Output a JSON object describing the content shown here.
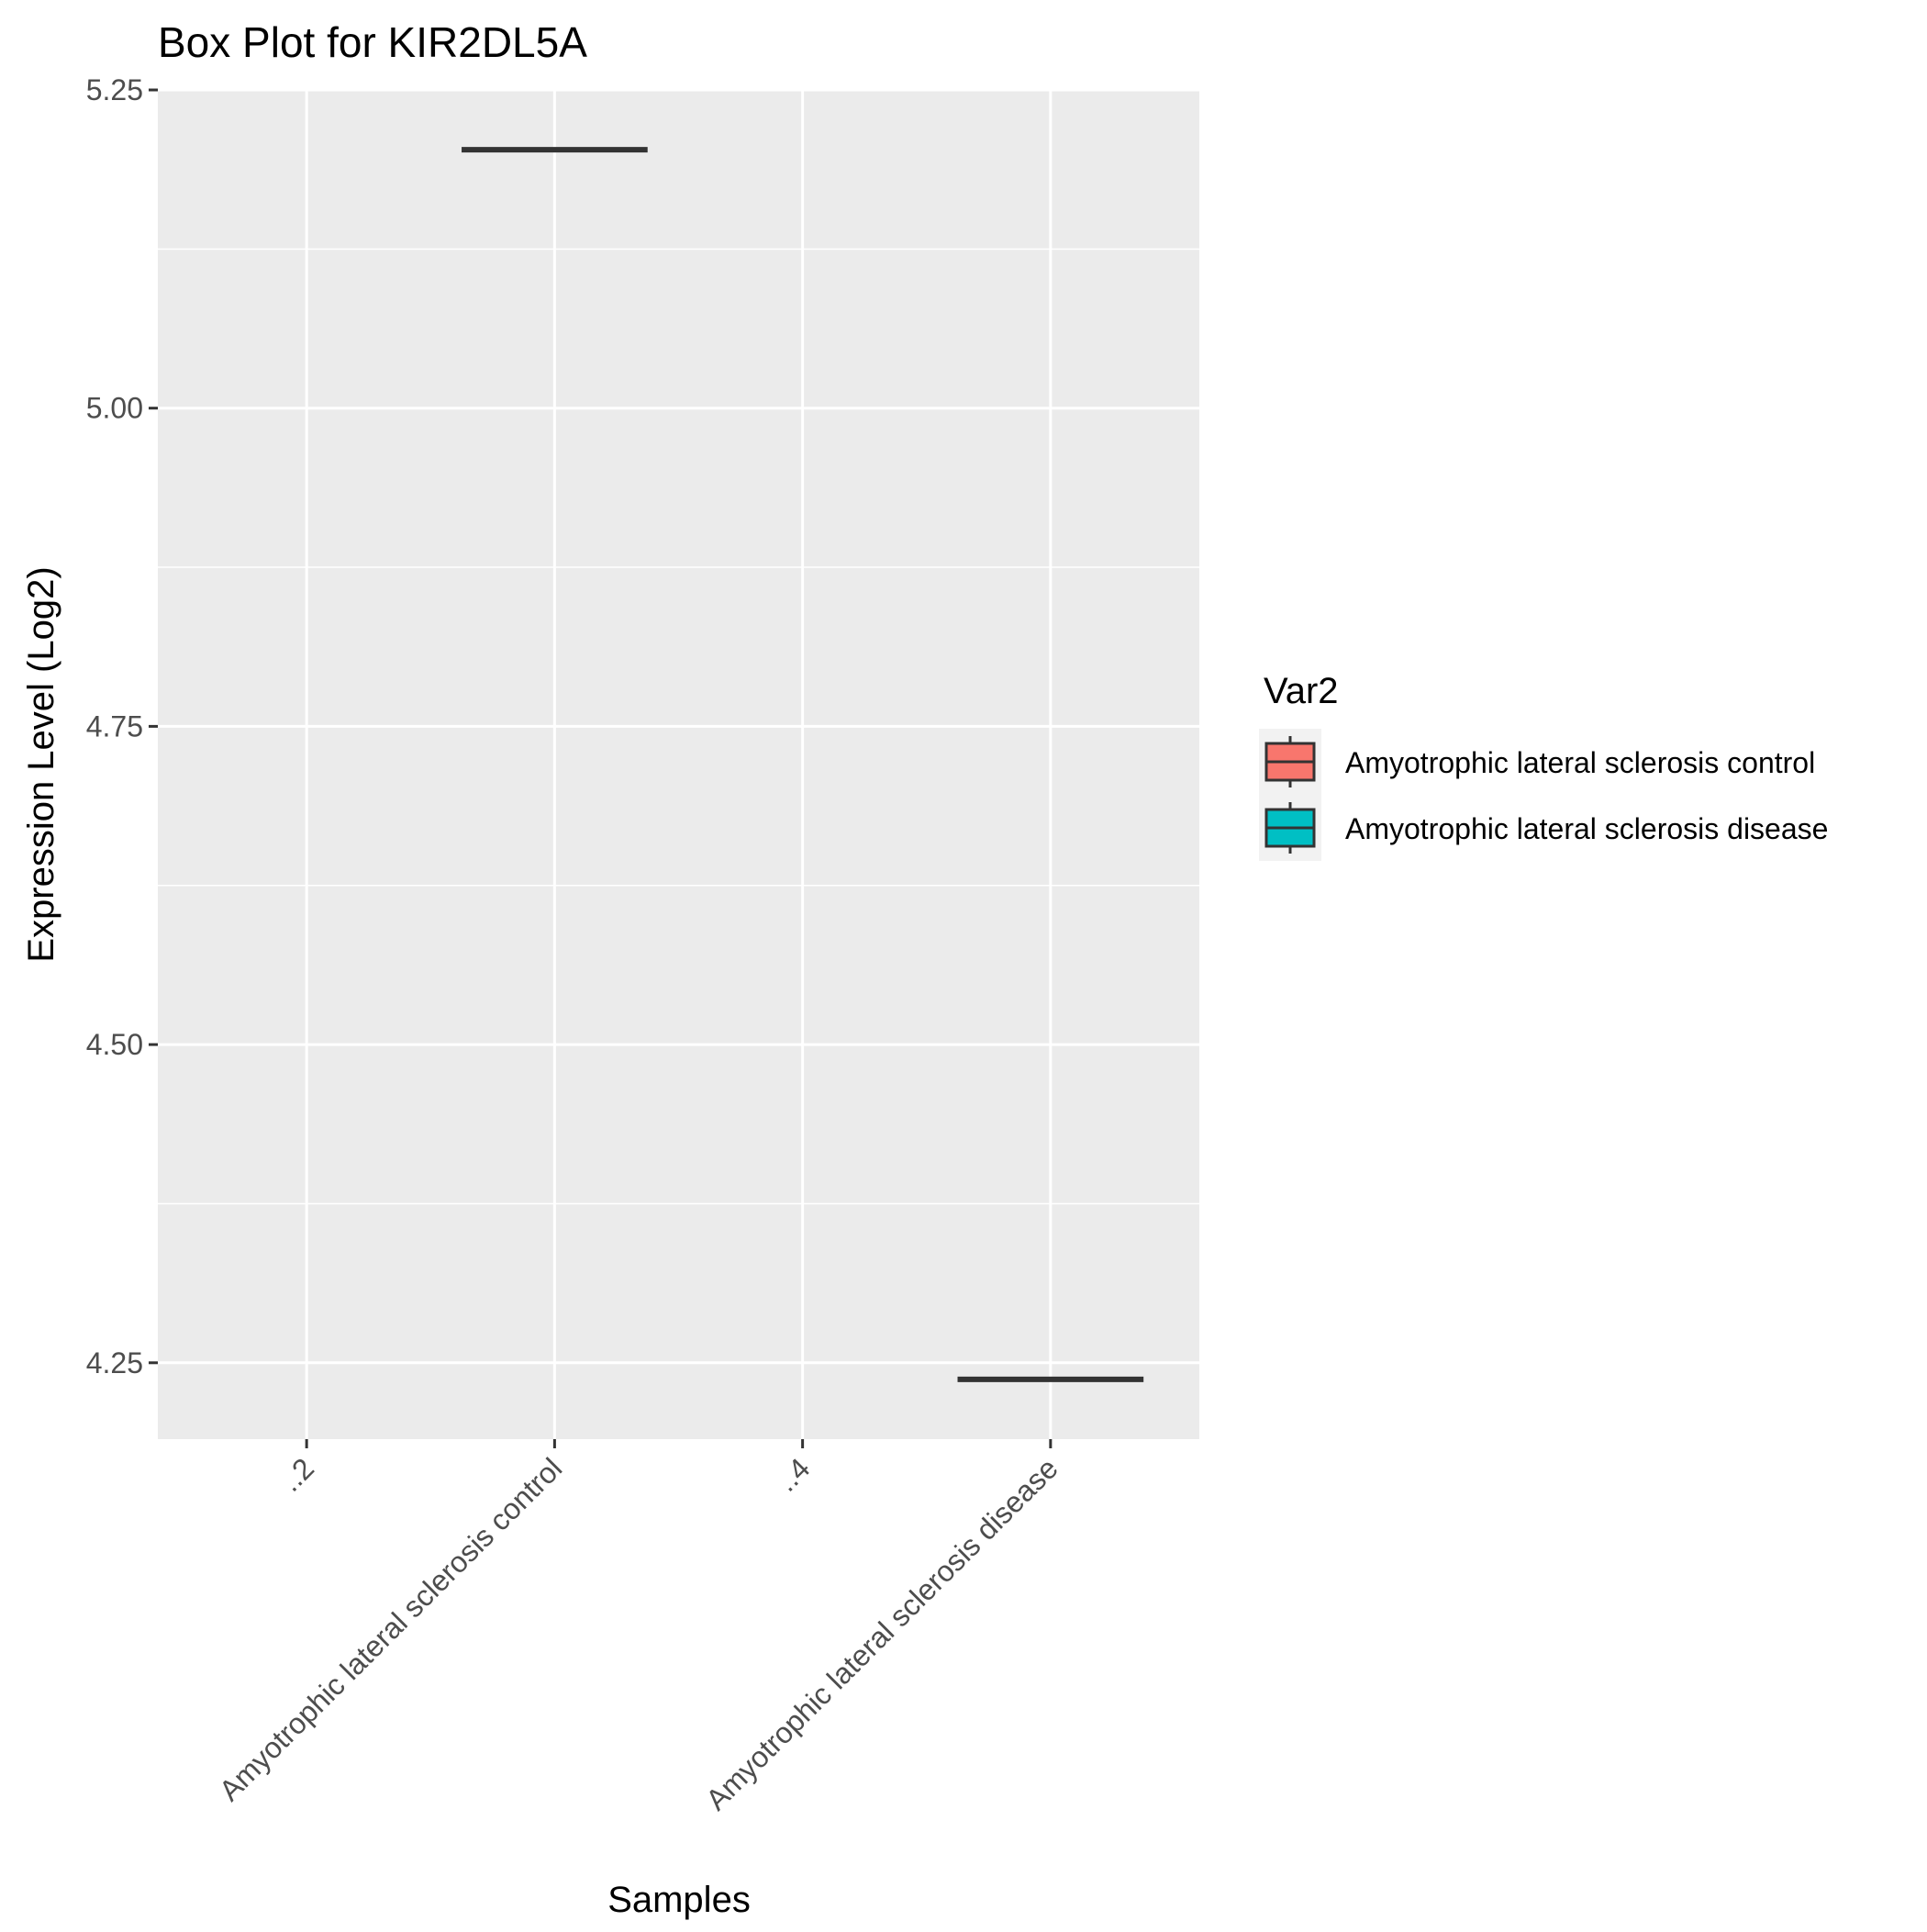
{
  "chart_data": {
    "type": "box",
    "title": "Box Plot for KIR2DL5A",
    "xlabel": "Samples",
    "ylabel": "Expression Level (Log2)",
    "categories": [
      "..2",
      "Amyotrophic lateral sclerosis control",
      "..4",
      "Amyotrophic lateral sclerosis disease"
    ],
    "ylim": [
      4.19,
      5.25
    ],
    "yticks": [
      4.25,
      4.5,
      4.75,
      5.0,
      5.25
    ],
    "ytick_labels": [
      "4.25",
      "4.50",
      "4.75",
      "5.00",
      "5.25"
    ],
    "boxes": [
      {
        "category": "Amyotrophic lateral sclerosis control",
        "group": "Amyotrophic lateral sclerosis control",
        "min": 5.203,
        "q1": 5.203,
        "median": 5.203,
        "q3": 5.203,
        "max": 5.203
      },
      {
        "category": "Amyotrophic lateral sclerosis disease",
        "group": "Amyotrophic lateral sclerosis disease",
        "min": 4.237,
        "q1": 4.237,
        "median": 4.237,
        "q3": 4.237,
        "max": 4.237
      }
    ],
    "legend": {
      "title": "Var2",
      "position": "right",
      "items": [
        {
          "label": "Amyotrophic lateral sclerosis control",
          "color": "#F8766D"
        },
        {
          "label": "Amyotrophic lateral sclerosis disease",
          "color": "#00BFC4"
        }
      ]
    },
    "panel_background": "#EBEBEB",
    "grid_color": "#FFFFFF",
    "box_line_color": "#333333",
    "text_color": "#000000",
    "tick_label_color": "#4D4D4D",
    "grid": true
  }
}
